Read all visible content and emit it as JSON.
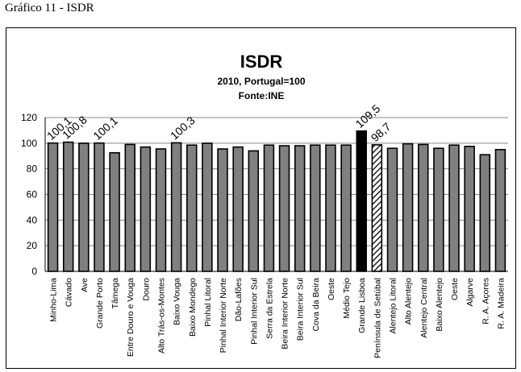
{
  "caption": "Gráfico 11 - ISDR",
  "chart_data": {
    "type": "bar",
    "title": "ISDR",
    "subtitle": "2010, Portugal=100",
    "source": "Fonte:INE",
    "ylim": [
      0,
      120
    ],
    "yticks": [
      0,
      20,
      40,
      60,
      80,
      100,
      120
    ],
    "grid": true,
    "categories": [
      "Minho-Lima",
      "Cávado",
      "Ave",
      "Grande Porto",
      "Tâmega",
      "Entre Douro e Vouga",
      "Douro",
      "Alto Trás-os-Montes",
      "Baixo Vouga",
      "Baixo Mondego",
      "Pinhal Litoral",
      "Pinhal Interior Norte",
      "Dão-Lafões",
      "Pinhal Interior Sul",
      "Serra da Estrela",
      "Beira Interior Norte",
      "Beira Interior Sul",
      "Cova da Beira",
      "Oeste",
      "Médio Tejo",
      "Grande Lisboa",
      "Península de Setúbal",
      "Alentejo Litoral",
      "Alto Alentejo",
      "Alentejo Central",
      "Baixo Alentejo",
      "Oeste",
      "Algarve",
      "R. A. Açores",
      "R. A. Madeira"
    ],
    "values": [
      100.1,
      100.8,
      100,
      100.1,
      92.5,
      99,
      97,
      95.5,
      100.3,
      98.5,
      100,
      95.5,
      97,
      94,
      98.5,
      98,
      98,
      98.5,
      98.5,
      98.5,
      109.5,
      98.7,
      96,
      99.5,
      99,
      96,
      98.5,
      97.5,
      91,
      95
    ],
    "data_labels": [
      "100,1",
      "100,8",
      "",
      "100,1",
      "",
      "",
      "",
      "",
      "100,3",
      "",
      "",
      "",
      "",
      "",
      "",
      "",
      "",
      "",
      "",
      "",
      "109,5",
      "98,7",
      "",
      "",
      "",
      "",
      "",
      "",
      "",
      ""
    ],
    "colors": {
      "default_bar": "#808080",
      "highlight_bar": "#000000",
      "hatched_bar_stroke": "#000000",
      "grid": "#888888",
      "plot_background": "#ffffff"
    },
    "styles": [
      "default",
      "default",
      "default",
      "default",
      "default",
      "default",
      "default",
      "default",
      "default",
      "default",
      "default",
      "default",
      "default",
      "default",
      "default",
      "default",
      "default",
      "default",
      "default",
      "default",
      "highlight",
      "hatched",
      "default",
      "default",
      "default",
      "default",
      "default",
      "default",
      "default",
      "default"
    ]
  }
}
